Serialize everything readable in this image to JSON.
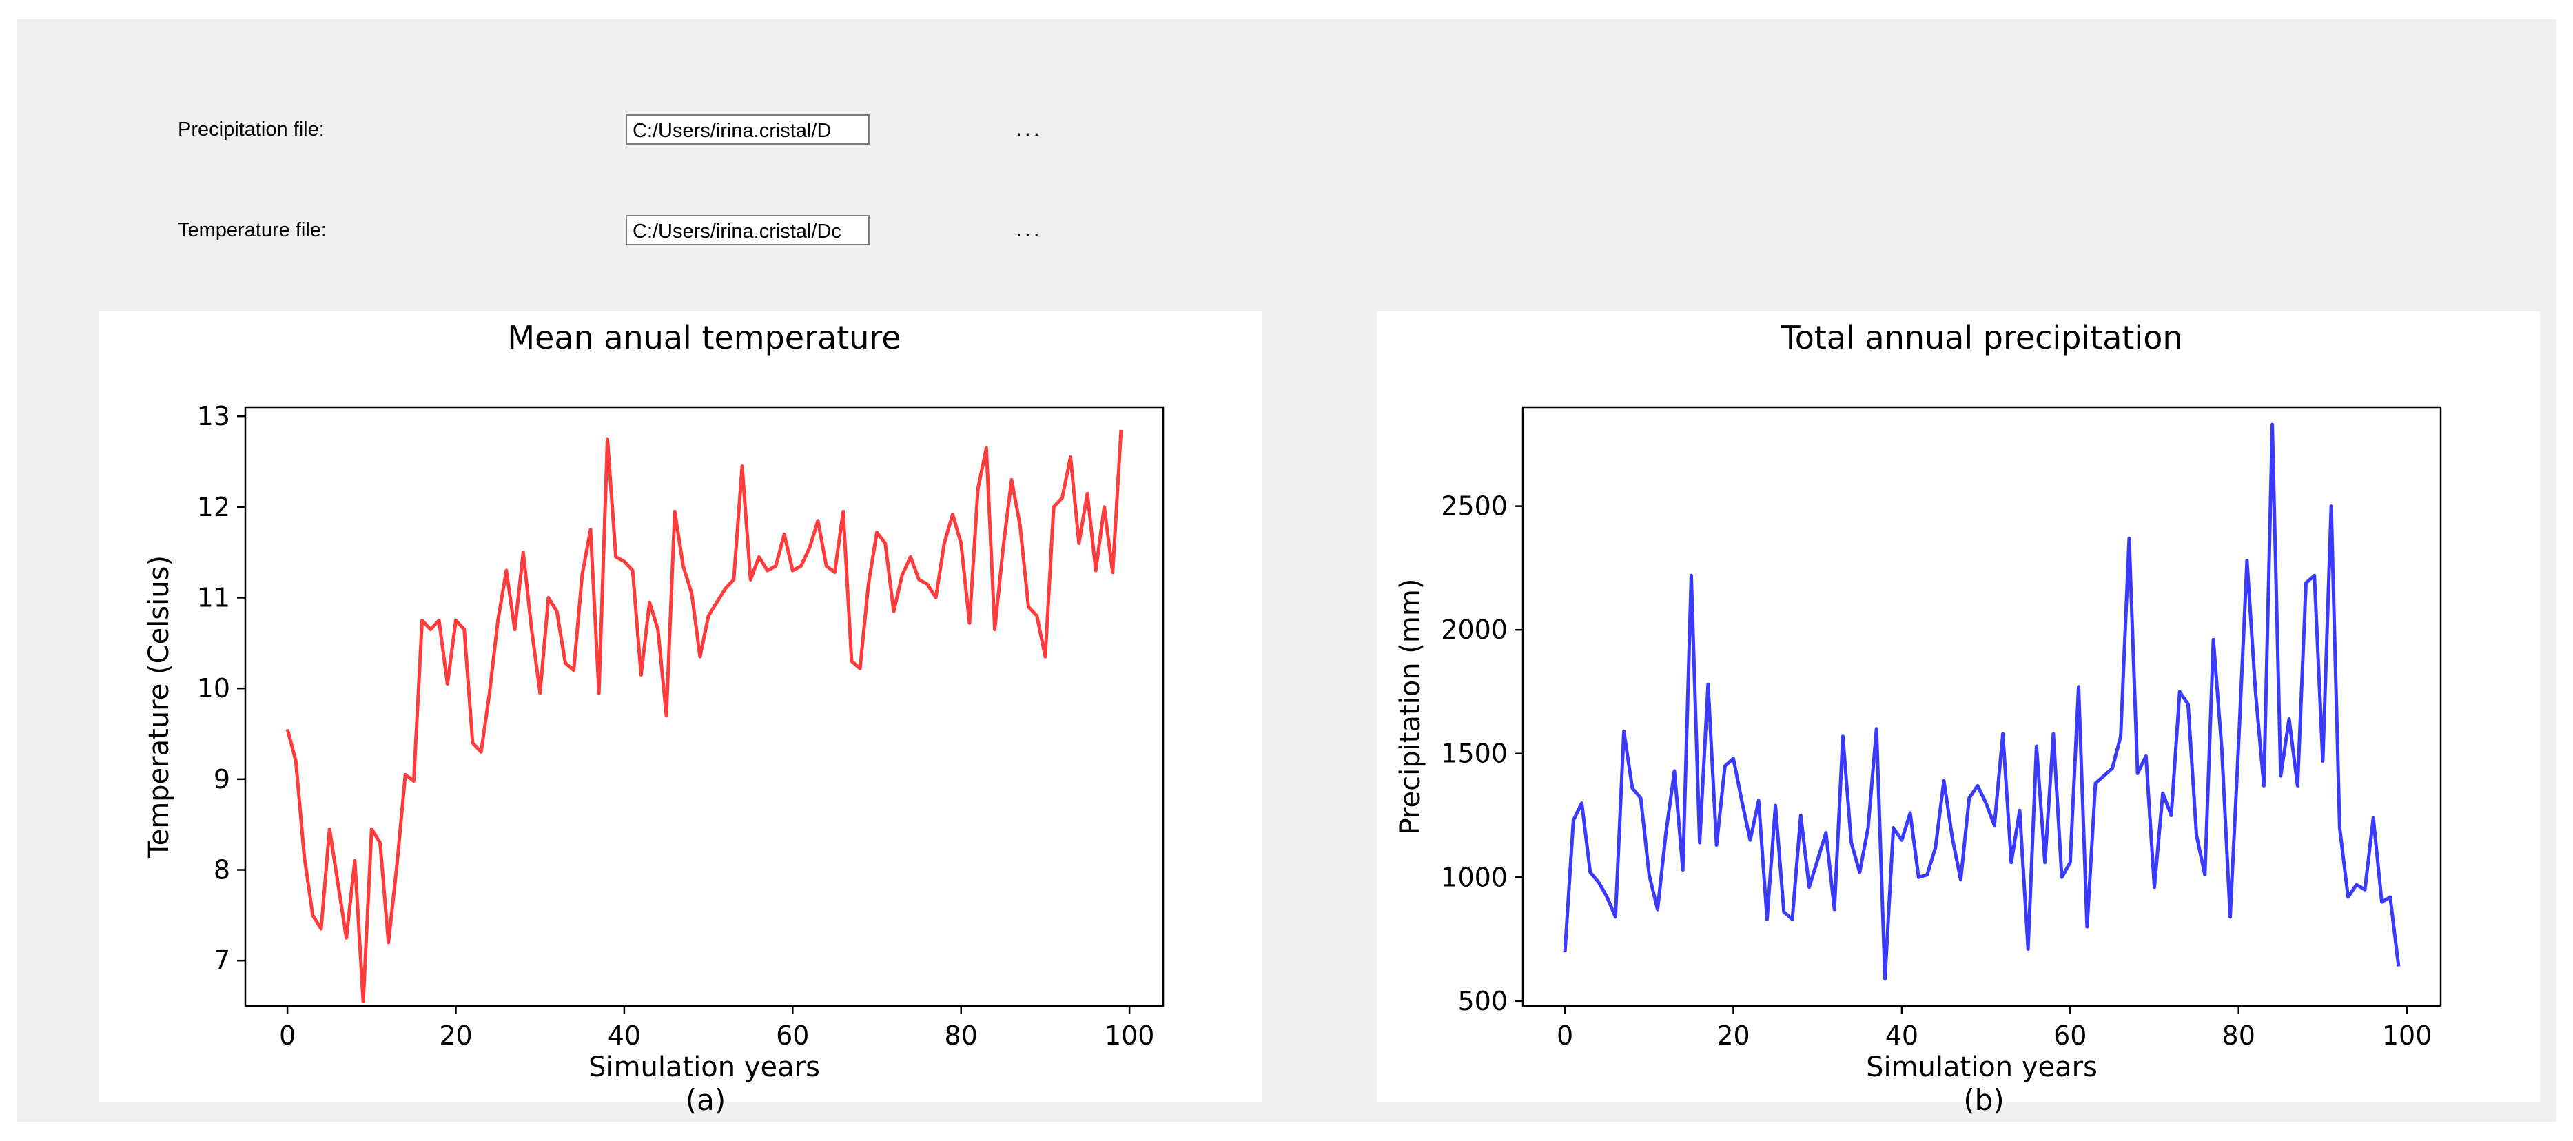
{
  "files": {
    "precipitation": {
      "label": "Precipitation file:",
      "value": "C:/Users/irina.cristal/D",
      "browse": "..."
    },
    "temperature": {
      "label": "Temperature file:",
      "value": "C:/Users/irina.cristal/Dс",
      "browse": "..."
    }
  },
  "captions": {
    "a": "(a)",
    "b": "(b)"
  },
  "chart_data": [
    {
      "type": "line",
      "title": "Mean anual temperature",
      "xlabel": "Simulation years",
      "ylabel": "Temperature (Celsius)",
      "color": "#ff3b3b",
      "xlim": [
        -5,
        104
      ],
      "ylim": [
        6.5,
        13.1
      ],
      "xticks": [
        0,
        20,
        40,
        60,
        80,
        100
      ],
      "yticks": [
        7,
        8,
        9,
        10,
        11,
        12,
        13
      ],
      "x_start": 0,
      "values": [
        9.55,
        9.2,
        8.15,
        7.5,
        7.35,
        8.45,
        7.85,
        7.25,
        8.1,
        6.55,
        8.45,
        8.3,
        7.2,
        8.05,
        9.05,
        8.98,
        10.75,
        10.65,
        10.75,
        10.05,
        10.75,
        10.65,
        9.4,
        9.3,
        9.95,
        10.75,
        11.3,
        10.65,
        11.5,
        10.65,
        9.95,
        11.0,
        10.85,
        10.28,
        10.2,
        11.25,
        11.75,
        9.95,
        12.75,
        11.45,
        11.4,
        11.3,
        10.15,
        10.95,
        10.65,
        9.7,
        11.95,
        11.35,
        11.05,
        10.35,
        10.8,
        10.95,
        11.1,
        11.2,
        12.45,
        11.2,
        11.45,
        11.3,
        11.35,
        11.7,
        11.3,
        11.35,
        11.55,
        11.85,
        11.35,
        11.28,
        11.95,
        10.3,
        10.22,
        11.15,
        11.72,
        11.6,
        10.85,
        11.25,
        11.45,
        11.2,
        11.15,
        11.0,
        11.6,
        11.92,
        11.6,
        10.72,
        12.2,
        12.65,
        10.65,
        11.55,
        12.3,
        11.8,
        10.9,
        10.8,
        10.35,
        12.0,
        12.1,
        12.55,
        11.6,
        12.15,
        11.3,
        12.0,
        11.28,
        12.85
      ]
    },
    {
      "type": "line",
      "title": "Total annual precipitation",
      "xlabel": "Simulation years",
      "ylabel": "Precipitation (mm)",
      "color": "#3a3aff",
      "xlim": [
        -5,
        104
      ],
      "ylim": [
        480,
        2900
      ],
      "xticks": [
        0,
        20,
        40,
        60,
        80,
        100
      ],
      "yticks": [
        500,
        1000,
        1500,
        2000,
        2500
      ],
      "x_start": 0,
      "values": [
        700,
        1230,
        1300,
        1020,
        980,
        920,
        840,
        1590,
        1360,
        1320,
        1010,
        870,
        1180,
        1430,
        1030,
        2220,
        1140,
        1780,
        1130,
        1450,
        1480,
        1310,
        1150,
        1310,
        830,
        1290,
        860,
        830,
        1250,
        960,
        1070,
        1180,
        870,
        1570,
        1140,
        1020,
        1200,
        1600,
        590,
        1200,
        1150,
        1260,
        1000,
        1010,
        1120,
        1390,
        1160,
        990,
        1320,
        1370,
        1300,
        1210,
        1580,
        1060,
        1270,
        710,
        1530,
        1060,
        1580,
        1000,
        1060,
        1770,
        800,
        1380,
        1410,
        1440,
        1570,
        2370,
        1420,
        1490,
        960,
        1340,
        1250,
        1750,
        1700,
        1170,
        1010,
        1960,
        1520,
        840,
        1540,
        2280,
        1750,
        1370,
        2830,
        1410,
        1640,
        1370,
        2190,
        2220,
        1470,
        2500,
        1200,
        920,
        970,
        950,
        1240,
        900,
        920,
        640
      ]
    }
  ]
}
